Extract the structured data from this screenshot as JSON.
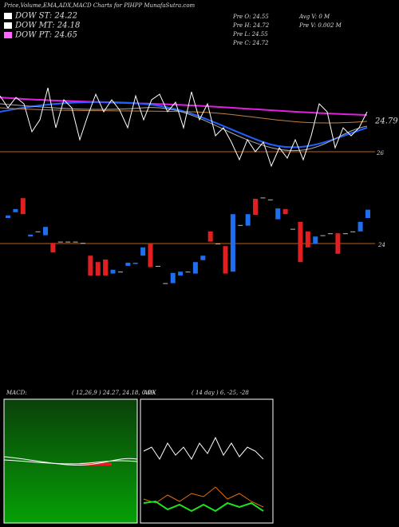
{
  "header": {
    "title": "Price,Volume,EMA,ADX,MACD Charts for PIHPP MunafaSutra.com",
    "legend": [
      "DOW ST: 24.22",
      "DOW MT: 24.18",
      "DOW PT: 24.65"
    ],
    "legend_colors": [
      "#ffffff",
      "#ffffff",
      "#ff66ff"
    ],
    "info_left": [
      "Pre  O: 24.55",
      "Pre  H: 24.72",
      "Pre  L: 24.55",
      "Pre  C: 24.72"
    ],
    "info_right": [
      "Avg V: 0  M",
      "Pre  V: 0.002  M"
    ]
  },
  "ema_panel": {
    "labels": [
      "24.79",
      "26"
    ]
  },
  "chart_data": {
    "type": "candlestick",
    "ylim": [
      22.6,
      25.2
    ],
    "yticks": [
      24
    ],
    "up_color": "#1e6ff0",
    "down_color": "#e02020",
    "open": [
      24.4,
      24.49,
      24.71,
      24.11,
      24.19,
      24.13,
      24.01,
      24.03,
      24.03,
      24.03,
      24.01,
      23.81,
      23.71,
      23.75,
      23.53,
      23.56,
      23.65,
      23.68,
      23.81,
      24.0,
      23.65,
      23.38,
      23.38,
      23.5,
      23.56,
      23.53,
      23.74,
      24.19,
      24.0,
      23.96,
      23.56,
      24.29,
      24.28,
      24.7,
      24.72,
      24.69,
      24.38,
      24.54,
      24.23,
      24.34,
      24.19,
      24.0,
      24.13,
      24.16,
      24.16,
      24.16,
      24.19,
      24.19,
      24.4
    ],
    "close": [
      24.44,
      24.54,
      24.46,
      24.14,
      24.19,
      24.26,
      23.86,
      24.03,
      24.03,
      24.03,
      24.01,
      23.5,
      23.5,
      23.5,
      23.59,
      23.56,
      23.7,
      23.7,
      23.94,
      23.63,
      23.65,
      23.38,
      23.54,
      23.56,
      23.56,
      23.71,
      23.81,
      24.03,
      24.0,
      23.53,
      24.46,
      24.29,
      24.46,
      24.45,
      24.72,
      24.69,
      24.55,
      24.46,
      24.23,
      23.71,
      23.94,
      24.11,
      24.13,
      24.16,
      23.84,
      24.16,
      24.19,
      24.34,
      24.53
    ]
  },
  "macd": {
    "label": "MACD:",
    "values": "( 12,26,9 ) 24.27, 24.18, 0.09"
  },
  "adx": {
    "label": "ADX",
    "values": "( 14  day ) 6, -25, -28"
  }
}
